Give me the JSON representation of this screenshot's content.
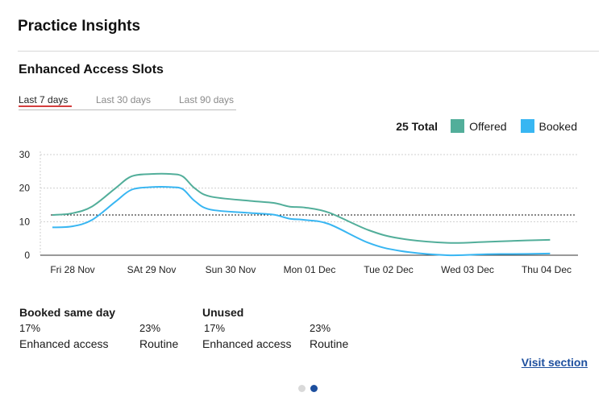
{
  "header": {
    "title": "Practice Insights"
  },
  "section": {
    "title": "Enhanced Access Slots"
  },
  "tabs": [
    {
      "label": "Last 7 days",
      "active": true
    },
    {
      "label": "Last 30 days",
      "active": false
    },
    {
      "label": "Last 90 days",
      "active": false
    }
  ],
  "legend": {
    "total": "25 Total",
    "items": [
      {
        "label": "Offered",
        "color": "#52ae9a"
      },
      {
        "label": "Booked",
        "color": "#38b6f2"
      }
    ]
  },
  "chart_data": {
    "type": "line",
    "categories": [
      "Fri 28 Nov",
      "SAt 29 Nov",
      "Sun 30 Nov",
      "Mon 01 Dec",
      "Tue 02 Dec",
      "Wed 03 Dec",
      "Thu 04 Dec"
    ],
    "ylim": [
      0,
      30
    ],
    "yticks": [
      0,
      10,
      20,
      30
    ],
    "reference_line": 12,
    "x": [
      0,
      0.25,
      0.5,
      0.8,
      1.0,
      1.25,
      1.5,
      1.65,
      1.8,
      2.0,
      2.5,
      2.8,
      3.0,
      3.2,
      3.5,
      4.0,
      4.4,
      5.0,
      5.5,
      6.0,
      6.3
    ],
    "series": [
      {
        "name": "Offered",
        "color": "#52ae9a",
        "values": [
          12,
          12.5,
          14.5,
          20,
          23.5,
          24.2,
          24.2,
          23.5,
          20,
          17.5,
          16.2,
          15.6,
          14.5,
          14.2,
          12.7,
          7.5,
          5,
          3.7,
          4,
          4.4,
          4.6
        ]
      },
      {
        "name": "Booked",
        "color": "#38b6f2",
        "values": [
          8.3,
          8.6,
          10.5,
          16,
          19.5,
          20.3,
          20.3,
          19.7,
          16.2,
          13.6,
          12.6,
          12.1,
          10.9,
          10.5,
          9.3,
          3.7,
          1.3,
          0,
          0.3,
          0.4,
          0.5
        ]
      }
    ]
  },
  "stats": {
    "booked_same_day": {
      "title": "Booked same day",
      "enhanced_value": "17%",
      "enhanced_label": "Enhanced access",
      "routine_value": "23%",
      "routine_label": "Routine"
    },
    "unused": {
      "title": "Unused",
      "enhanced_value": "17%",
      "enhanced_label": "Enhanced access",
      "routine_value": "23%",
      "routine_label": "Routine"
    }
  },
  "footer": {
    "visit_link": "Visit section"
  },
  "pager": {
    "current": 2,
    "total": 2,
    "inactive_color": "#d9d9d9",
    "active_color": "#1d4f9e"
  }
}
